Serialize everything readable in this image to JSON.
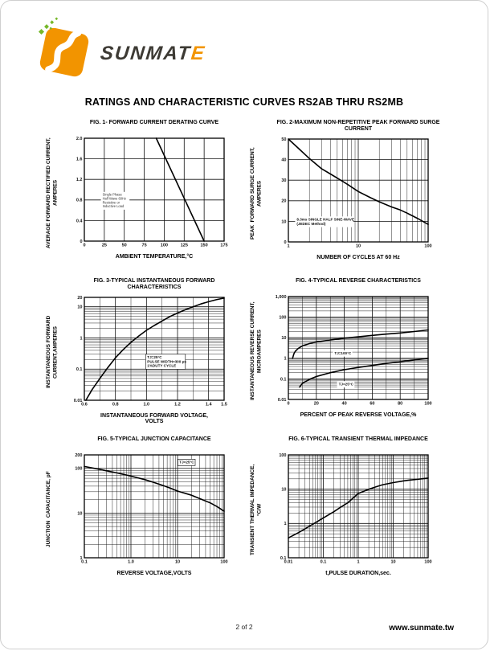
{
  "page": {
    "title": "RATINGS AND CHARACTERISTIC CURVES RS2AB THRU RS2MB",
    "footer": {
      "page_number": "2 of 2",
      "website": "www.sunmate.tw"
    },
    "brand": {
      "wordmark_main": "SUNMAT",
      "wordmark_accent": "E",
      "colors": {
        "orange": "#f29400",
        "green": "#76b82a",
        "charcoal": "#3d3a34"
      }
    }
  },
  "chart_data": [
    {
      "type": "line",
      "title": "FIG. 1- FORWARD CURRENT DERATING CURVE",
      "xlabel": "AMBIENT TEMPERATURE,°C",
      "ylabel": "AVERAGE FORWARD RECTIFIED CURRENT,\nAMPERES",
      "x_scale": "linear",
      "y_scale": "linear",
      "xlim": [
        0,
        175
      ],
      "ylim": [
        0,
        2.0
      ],
      "x_ticks": [
        0,
        25,
        50,
        75,
        100,
        125,
        150,
        175
      ],
      "x_tick_labels": [
        "0",
        "25",
        "50",
        "75",
        "100",
        "125",
        "150",
        "175"
      ],
      "y_ticks": [
        0,
        0.4,
        0.8,
        1.2,
        1.6,
        2.0
      ],
      "y_tick_labels": [
        "0",
        "0.4",
        "0.8",
        "1.2",
        "1.6",
        "2.0"
      ],
      "grid": true,
      "series": [
        {
          "name": "derating-line",
          "points": [
            [
              90,
              2.0
            ],
            [
              150,
              0
            ]
          ]
        }
      ],
      "annotations": [
        {
          "lines": [
            "Single Phase",
            "Half Wave 60Hz",
            "Resistive or",
            "Inductive Load"
          ],
          "fx": 0.13,
          "fy": 0.53,
          "box": false,
          "small": true
        }
      ]
    },
    {
      "type": "line",
      "title": "FIG. 2-MAXIMUM NON-REPETITIVE PEAK FORWARD SURGE CURRENT",
      "xlabel": "NUMBER OF CYCLES AT 60 Hz",
      "ylabel": "PEAK  FORWARD SURGE CURRENT,\nAMPERES",
      "x_scale": "log",
      "y_scale": "linear",
      "xlim": [
        1,
        100
      ],
      "ylim": [
        0,
        50
      ],
      "x_ticks": [
        1,
        10,
        100
      ],
      "x_tick_labels": [
        "1",
        "10",
        "100"
      ],
      "y_ticks": [
        0,
        10,
        20,
        30,
        40,
        50
      ],
      "y_tick_labels": [
        "0",
        "10",
        "20",
        "30",
        "40",
        "50"
      ],
      "grid": true,
      "series": [
        {
          "name": "surge-current",
          "points": [
            [
              1,
              50
            ],
            [
              1.5,
              44.5
            ],
            [
              2,
              40.5
            ],
            [
              3,
              35.5
            ],
            [
              4,
              33
            ],
            [
              5,
              31
            ],
            [
              7,
              28
            ],
            [
              10,
              24.5
            ],
            [
              15,
              21.5
            ],
            [
              20,
              19.5
            ],
            [
              30,
              17
            ],
            [
              40,
              15.5
            ],
            [
              50,
              14
            ],
            [
              70,
              11.5
            ],
            [
              100,
              8.5
            ]
          ]
        }
      ],
      "annotations": [
        {
          "lines": [
            "8.3ms SINGLE HALF SINE-WAVE",
            "(JEDEC Method)"
          ],
          "fx": 0.06,
          "fy": 0.76,
          "box": false,
          "small": false
        }
      ]
    },
    {
      "type": "line",
      "title": "FIG. 3-TYPICAL INSTANTANEOUS FORWARD CHARACTERISTICS",
      "xlabel": "INSTANTANEOUS FORWARD VOLTAGE,\nVOLTS",
      "ylabel": "INSTANTANEOUS FORWARD\nCURRENT,AMPERES",
      "x_scale": "linear",
      "y_scale": "log",
      "xlim": [
        0.6,
        1.5
      ],
      "ylim": [
        0.01,
        20
      ],
      "x_minor_step": 0.1,
      "x_ticks": [
        0.6,
        0.8,
        1.0,
        1.2,
        1.4,
        1.5
      ],
      "x_tick_labels": [
        "0.6",
        "0.8",
        "1.0",
        "1.2",
        "1.4",
        "1.5"
      ],
      "y_ticks": [
        0.01,
        0.1,
        1,
        10,
        20
      ],
      "y_tick_labels": [
        "0.01",
        "0.1",
        "1",
        "10",
        "20"
      ],
      "grid": true,
      "series": [
        {
          "name": "forward-characteristic",
          "points": [
            [
              0.61,
              0.01
            ],
            [
              0.65,
              0.022
            ],
            [
              0.7,
              0.05
            ],
            [
              0.75,
              0.11
            ],
            [
              0.8,
              0.23
            ],
            [
              0.85,
              0.42
            ],
            [
              0.9,
              0.72
            ],
            [
              0.95,
              1.15
            ],
            [
              1.0,
              1.75
            ],
            [
              1.05,
              2.5
            ],
            [
              1.1,
              3.5
            ],
            [
              1.15,
              4.8
            ],
            [
              1.2,
              6.3
            ],
            [
              1.25,
              8.0
            ],
            [
              1.3,
              10.0
            ],
            [
              1.35,
              12.3
            ],
            [
              1.4,
              14.5
            ],
            [
              1.45,
              16.8
            ],
            [
              1.5,
              19.0
            ]
          ]
        }
      ],
      "annotations": [
        {
          "lines": [
            "TJ=25°C",
            "PULSE WIDTH=300 μs",
            "1%DUTY CYCLE"
          ],
          "fx": 0.45,
          "fy": 0.56,
          "box": true,
          "small": false
        }
      ]
    },
    {
      "type": "line",
      "title": "FIG. 4-TYPICAL REVERSE CHARACTERISTICS",
      "xlabel": "PERCENT OF PEAK REVERSE VOLTAGE,%",
      "ylabel": "INSTANTANEOUS REVERSE CURRENT,\nMICROAMPERES",
      "x_scale": "linear",
      "y_scale": "log",
      "xlim": [
        0,
        100
      ],
      "ylim": [
        0.01,
        1000
      ],
      "x_minor_step": 10,
      "x_ticks": [
        0,
        20,
        40,
        60,
        80,
        100
      ],
      "x_tick_labels": [
        "0",
        "20",
        "40",
        "60",
        "80",
        "100"
      ],
      "y_ticks": [
        0.01,
        0.1,
        1,
        10,
        100,
        1000
      ],
      "y_tick_labels": [
        "0.01",
        "0.1",
        "1",
        "10",
        "100",
        "1,000"
      ],
      "grid": true,
      "series": [
        {
          "name": "tj-100c",
          "label": "TJ=100°C",
          "points": [
            [
              3,
              1.0
            ],
            [
              4,
              1.7
            ],
            [
              5,
              2.2
            ],
            [
              7,
              3.0
            ],
            [
              10,
              4.0
            ],
            [
              15,
              5.2
            ],
            [
              20,
              6.2
            ],
            [
              30,
              7.8
            ],
            [
              40,
              9.5
            ],
            [
              50,
              11
            ],
            [
              60,
              13
            ],
            [
              70,
              15
            ],
            [
              80,
              17
            ],
            [
              90,
              20
            ],
            [
              100,
              24
            ]
          ]
        },
        {
          "name": "tj-25c",
          "label": "TJ=25°C",
          "points": [
            [
              8,
              0.04
            ],
            [
              10,
              0.06
            ],
            [
              15,
              0.095
            ],
            [
              20,
              0.13
            ],
            [
              30,
              0.2
            ],
            [
              40,
              0.28
            ],
            [
              50,
              0.36
            ],
            [
              60,
              0.45
            ],
            [
              70,
              0.56
            ],
            [
              80,
              0.68
            ],
            [
              90,
              0.83
            ],
            [
              100,
              1.0
            ]
          ]
        }
      ],
      "annotations": [
        {
          "lines": [
            "TJ=100°C"
          ],
          "fx": 0.33,
          "fy": 0.53,
          "box": false,
          "small": false
        },
        {
          "lines": [
            "TJ=25°C"
          ],
          "fx": 0.36,
          "fy": 0.83,
          "box": false,
          "small": false
        }
      ]
    },
    {
      "type": "line",
      "title": "FIG. 5-TYPICAL JUNCTION CAPACITANCE",
      "xlabel": "REVERSE VOLTAGE,VOLTS",
      "ylabel": "JUNCTION  CAPACITANCE, pF",
      "x_scale": "log",
      "y_scale": "log",
      "xlim": [
        0.1,
        100
      ],
      "ylim": [
        1,
        200
      ],
      "x_ticks": [
        0.1,
        1.0,
        10,
        100
      ],
      "x_tick_labels": [
        "0.1",
        "1.0",
        "10",
        "100"
      ],
      "y_ticks": [
        1,
        10,
        100,
        200
      ],
      "y_tick_labels": [
        "1",
        "10",
        "100",
        "200"
      ],
      "grid": true,
      "series": [
        {
          "name": "junction-capacitance",
          "points": [
            [
              0.1,
              110
            ],
            [
              0.2,
              96
            ],
            [
              0.3,
              88
            ],
            [
              0.5,
              79
            ],
            [
              0.7,
              73
            ],
            [
              1,
              67
            ],
            [
              2,
              56
            ],
            [
              3,
              49
            ],
            [
              5,
              41
            ],
            [
              7,
              36
            ],
            [
              10,
              31
            ],
            [
              20,
              25
            ],
            [
              30,
              21
            ],
            [
              50,
              17
            ],
            [
              70,
              14
            ],
            [
              100,
              11
            ]
          ]
        }
      ],
      "annotations": [
        {
          "lines": [
            "TJ=25°C"
          ],
          "fx": 0.68,
          "fy": 0.05,
          "box": true,
          "small": false
        }
      ]
    },
    {
      "type": "line",
      "title": "FIG. 6-TYPICAL TRANSIENT THERMAL IMPEDANCE",
      "xlabel": "t,PULSE DURATION,sec.",
      "ylabel": "TRANSIENT THERMAL IMPEDANCE,\n°C/W",
      "x_scale": "log",
      "y_scale": "log",
      "xlim": [
        0.01,
        100
      ],
      "ylim": [
        0.1,
        100
      ],
      "x_ticks": [
        0.01,
        0.1,
        1,
        10,
        100
      ],
      "x_tick_labels": [
        "0.01",
        "0.1",
        "1",
        "10",
        "100"
      ],
      "y_ticks": [
        0.1,
        1,
        10,
        100
      ],
      "y_tick_labels": [
        "0.1",
        "1",
        "10",
        "100"
      ],
      "grid": true,
      "series": [
        {
          "name": "thermal-impedance",
          "points": [
            [
              0.01,
              0.38
            ],
            [
              0.02,
              0.55
            ],
            [
              0.03,
              0.7
            ],
            [
              0.05,
              0.95
            ],
            [
              0.1,
              1.45
            ],
            [
              0.2,
              2.2
            ],
            [
              0.3,
              2.9
            ],
            [
              0.5,
              4.0
            ],
            [
              1,
              7.5
            ],
            [
              2,
              10
            ],
            [
              3,
              11.5
            ],
            [
              5,
              13.5
            ],
            [
              10,
              15.5
            ],
            [
              20,
              17.5
            ],
            [
              30,
              18.5
            ],
            [
              50,
              19.5
            ],
            [
              100,
              21
            ]
          ]
        }
      ],
      "annotations": []
    }
  ]
}
